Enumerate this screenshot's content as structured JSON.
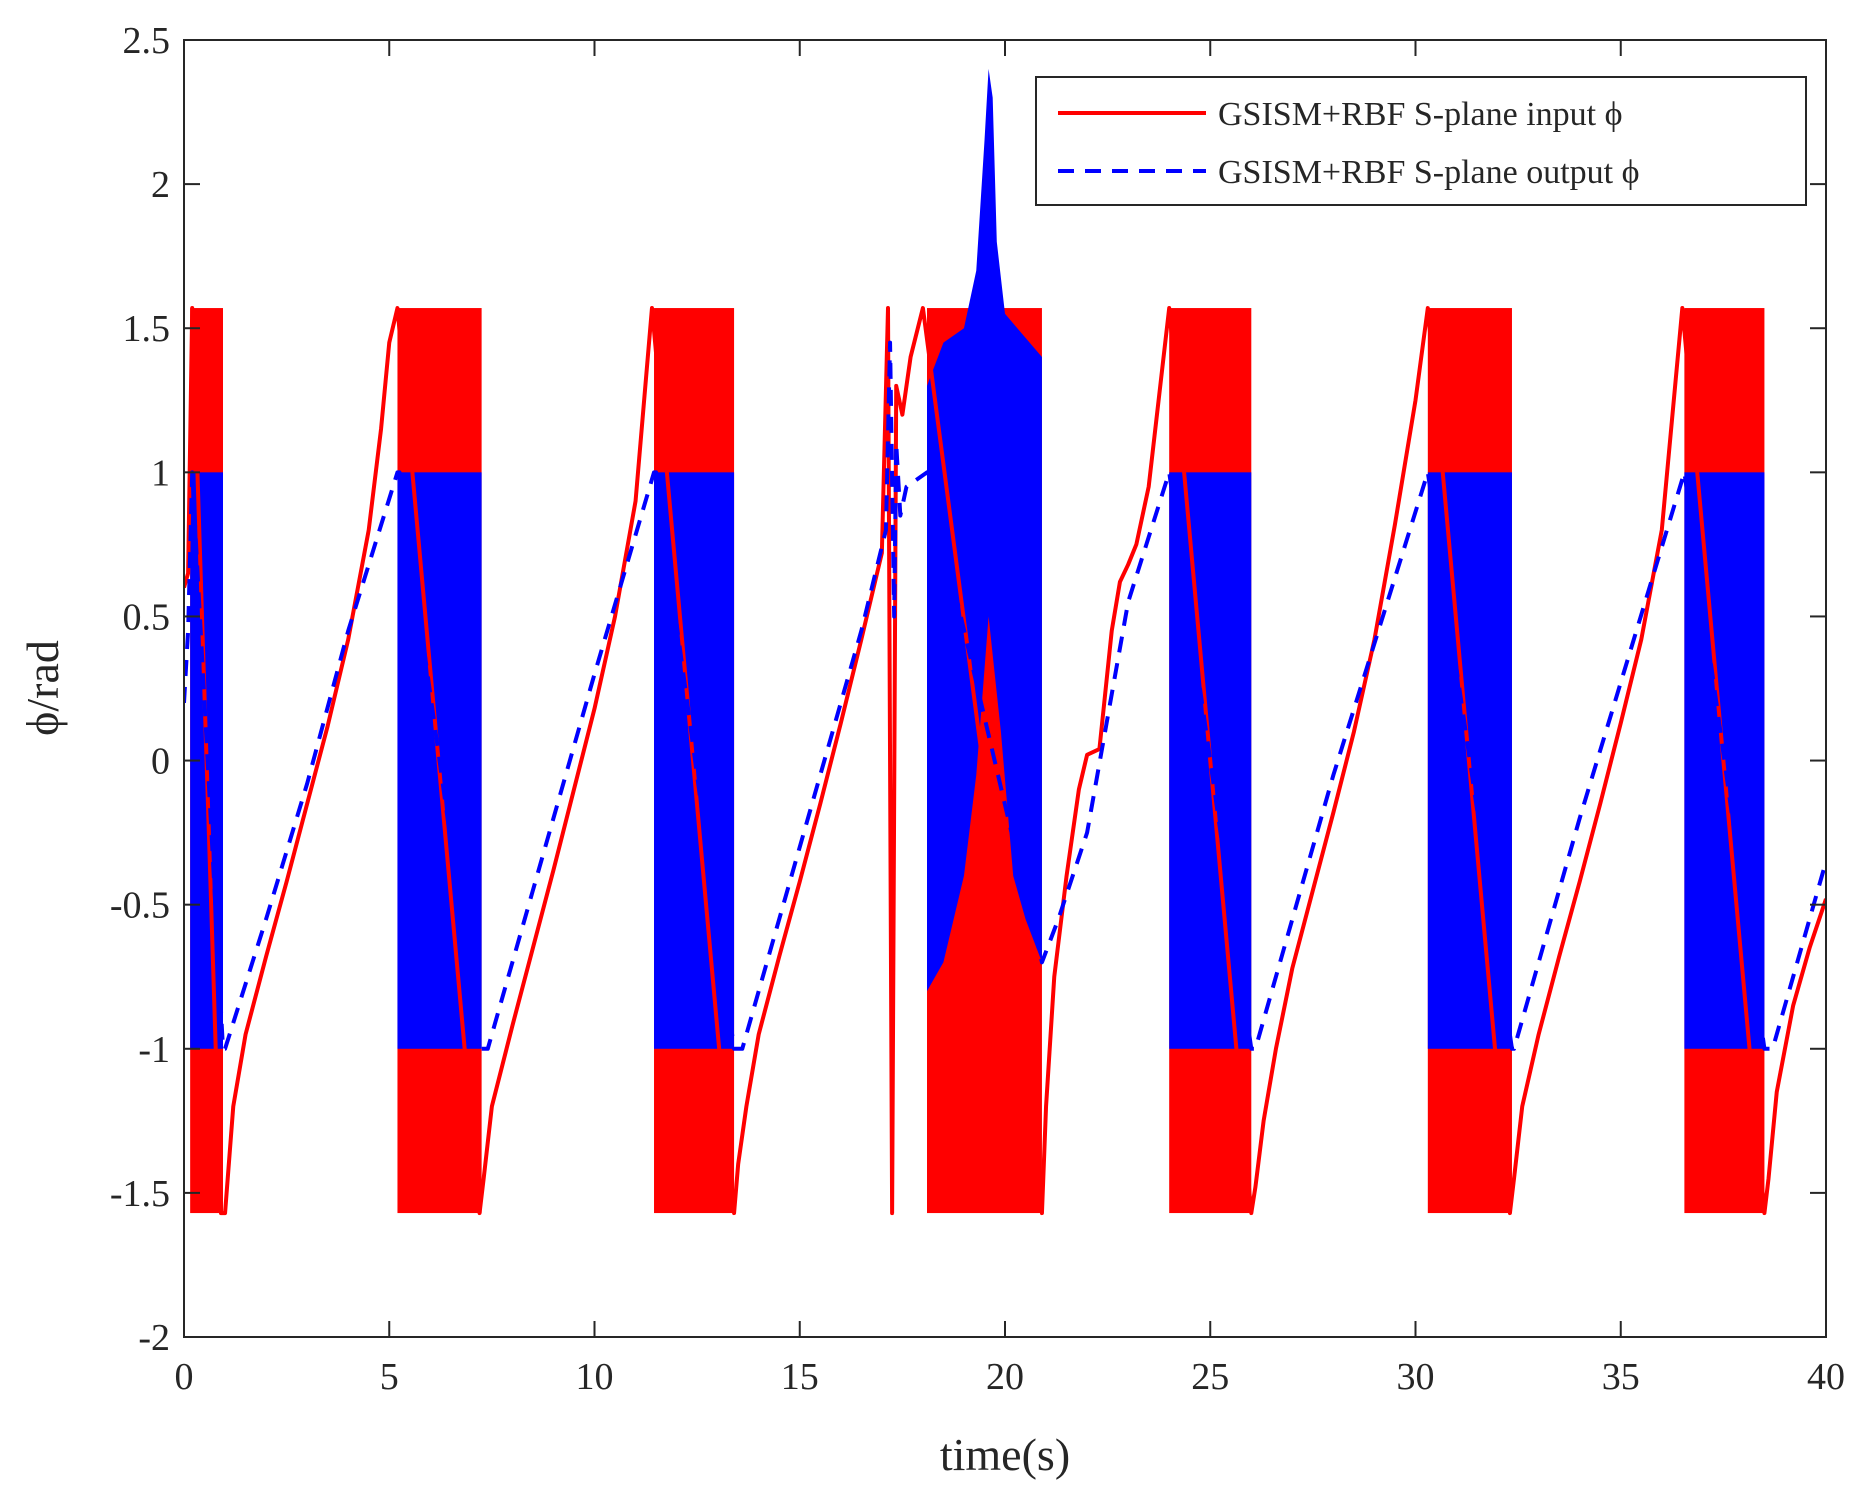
{
  "chart_data": {
    "type": "line",
    "title": "",
    "xlabel": "time(s)",
    "ylabel": "ϕ/rad",
    "xlim": [
      0,
      40
    ],
    "ylim": [
      -2,
      2.5
    ],
    "x_ticks": [
      0,
      5,
      10,
      15,
      20,
      25,
      30,
      35,
      40
    ],
    "y_ticks": [
      -2,
      -1.5,
      -1,
      -0.5,
      0,
      0.5,
      1,
      1.5,
      2,
      2.5
    ],
    "x_tick_labels": [
      "0",
      "5",
      "10",
      "15",
      "20",
      "25",
      "30",
      "35",
      "40"
    ],
    "y_tick_labels": [
      "-2",
      "-1.5",
      "-1",
      "-0.5",
      "0",
      "0.5",
      "1",
      "1.5",
      "2",
      "2.5"
    ],
    "grid": false,
    "legend_position": "top-right",
    "series": [
      {
        "name": "GSISM+RBF S-plane input ϕ",
        "style": "solid",
        "color": "#ff0000",
        "x": [
          0,
          0.1,
          0.2,
          0.9,
          1.0,
          1.2,
          1.5,
          2,
          2.5,
          3,
          3.5,
          4,
          4.5,
          4.8,
          5.0,
          5.2,
          7.2,
          7.3,
          7.5,
          8,
          8.5,
          9,
          9.5,
          10,
          10.5,
          11,
          11.4,
          13.4,
          13.5,
          13.7,
          14,
          14.5,
          15,
          15.5,
          16,
          16.5,
          17.0,
          17.15,
          17.25,
          17.35,
          17.5,
          17.7,
          18.0,
          20.9,
          21.0,
          21.2,
          21.5,
          21.8,
          22.0,
          22.3,
          22.6,
          22.8,
          23.0,
          23.2,
          23.5,
          24.0,
          24.0,
          26.0,
          26.1,
          26.3,
          26.6,
          27,
          27.5,
          28,
          28.5,
          29,
          29.5,
          30.0,
          30.3,
          32.3,
          32.4,
          32.6,
          33,
          33.5,
          34,
          34.5,
          35,
          35.5,
          36,
          36.5,
          38.5,
          38.6,
          38.8,
          39.2,
          39.6,
          40
        ],
        "y": [
          0.6,
          0.65,
          1.57,
          -1.57,
          -1.57,
          -1.2,
          -0.95,
          -0.68,
          -0.42,
          -0.15,
          0.12,
          0.42,
          0.8,
          1.15,
          1.45,
          1.57,
          -1.57,
          -1.45,
          -1.2,
          -0.92,
          -0.65,
          -0.38,
          -0.1,
          0.18,
          0.5,
          0.9,
          1.57,
          -1.57,
          -1.4,
          -1.2,
          -0.95,
          -0.68,
          -0.42,
          -0.15,
          0.13,
          0.42,
          0.72,
          1.57,
          -1.57,
          1.3,
          1.2,
          1.4,
          1.57,
          -1.57,
          -1.2,
          -0.75,
          -0.4,
          -0.1,
          0.02,
          0.04,
          0.45,
          0.62,
          0.68,
          0.75,
          0.95,
          1.57,
          1.57,
          -1.57,
          -1.48,
          -1.25,
          -1.0,
          -0.72,
          -0.45,
          -0.18,
          0.1,
          0.42,
          0.82,
          1.25,
          1.57,
          -1.57,
          -1.45,
          -1.2,
          -0.95,
          -0.68,
          -0.42,
          -0.15,
          0.13,
          0.42,
          0.8,
          1.57,
          -1.57,
          -1.45,
          -1.15,
          -0.85,
          -0.65,
          -0.48
        ],
        "oscillation_bands": [
          {
            "x_range": [
              0.15,
              0.95
            ],
            "y_range": [
              -1.57,
              1.57
            ]
          },
          {
            "x_range": [
              5.2,
              7.25
            ],
            "y_range": [
              -1.57,
              1.57
            ]
          },
          {
            "x_range": [
              11.45,
              13.4
            ],
            "y_range": [
              -1.57,
              1.57
            ]
          },
          {
            "x_range": [
              18.1,
              20.9
            ],
            "y_range": [
              -1.57,
              1.57
            ]
          },
          {
            "x_range": [
              24.0,
              26.0
            ],
            "y_range": [
              -1.57,
              1.57
            ]
          },
          {
            "x_range": [
              30.3,
              32.35
            ],
            "y_range": [
              -1.57,
              1.57
            ]
          },
          {
            "x_range": [
              36.55,
              38.5
            ],
            "y_range": [
              -1.57,
              1.57
            ]
          }
        ]
      },
      {
        "name": "GSISM+RBF S-plane output ϕ",
        "style": "dashed",
        "color": "#0000ff",
        "x": [
          0,
          0.1,
          0.2,
          0.95,
          1.0,
          2,
          3,
          4,
          5.2,
          5.25,
          7.2,
          7.4,
          8.5,
          10,
          11.45,
          11.5,
          13.4,
          13.6,
          15,
          16.5,
          17.1,
          17.2,
          17.3,
          17.35,
          17.45,
          17.6,
          18.1,
          20.9,
          21.3,
          22,
          22.5,
          23,
          24.0,
          26.0,
          26.1,
          28,
          30.3,
          32.35,
          32.4,
          34,
          36.55,
          38.5,
          38.7,
          40
        ],
        "y": [
          0.2,
          0.45,
          1.0,
          -1.0,
          -1.0,
          -0.55,
          -0.08,
          0.45,
          1.0,
          1.0,
          -1.0,
          -1.0,
          -0.45,
          0.3,
          1.0,
          1.0,
          -1.0,
          -1.0,
          -0.3,
          0.45,
          0.8,
          1.45,
          0.5,
          1.1,
          0.85,
          0.95,
          1.0,
          -0.7,
          -0.55,
          -0.25,
          0.15,
          0.55,
          1.0,
          -1.0,
          -1.0,
          -0.05,
          1.0,
          -1.0,
          -1.0,
          -0.2,
          1.0,
          -1.0,
          -1.0,
          -0.35
        ],
        "oscillation_bands": [
          {
            "x_range": [
              0.15,
              0.95
            ],
            "y_range": [
              -1.0,
              1.0
            ]
          },
          {
            "x_range": [
              5.2,
              7.25
            ],
            "y_range": [
              -1.0,
              1.0
            ]
          },
          {
            "x_range": [
              11.45,
              13.4
            ],
            "y_range": [
              -1.0,
              1.0
            ]
          },
          {
            "x_range": [
              24.0,
              26.0
            ],
            "y_range": [
              -1.0,
              1.0
            ]
          },
          {
            "x_range": [
              30.3,
              32.35
            ],
            "y_range": [
              -1.0,
              1.0
            ]
          },
          {
            "x_range": [
              36.55,
              38.5
            ],
            "y_range": [
              -1.0,
              1.0
            ]
          }
        ],
        "spike_region": {
          "x_range": [
            18.1,
            20.9
          ],
          "upper_envelope": {
            "x": [
              18.1,
              18.5,
              19.0,
              19.3,
              19.5,
              19.6,
              19.7,
              19.8,
              20.0,
              20.3,
              20.6,
              20.9
            ],
            "y": [
              1.3,
              1.45,
              1.5,
              1.7,
              2.15,
              2.4,
              2.3,
              1.8,
              1.55,
              1.5,
              1.45,
              1.4
            ]
          },
          "lower_envelope": {
            "x": [
              18.1,
              18.5,
              19.0,
              19.3,
              19.6,
              19.9,
              20.2,
              20.5,
              20.9
            ],
            "y": [
              -0.8,
              -0.7,
              -0.4,
              -0.05,
              0.5,
              0.1,
              -0.4,
              -0.55,
              -0.7
            ]
          }
        }
      }
    ]
  },
  "legend": {
    "items": [
      {
        "label": "GSISM+RBF S-plane input ϕ",
        "color": "#ff0000",
        "style": "solid"
      },
      {
        "label": "GSISM+RBF S-plane output ϕ",
        "color": "#0000ff",
        "style": "dashed"
      }
    ]
  }
}
